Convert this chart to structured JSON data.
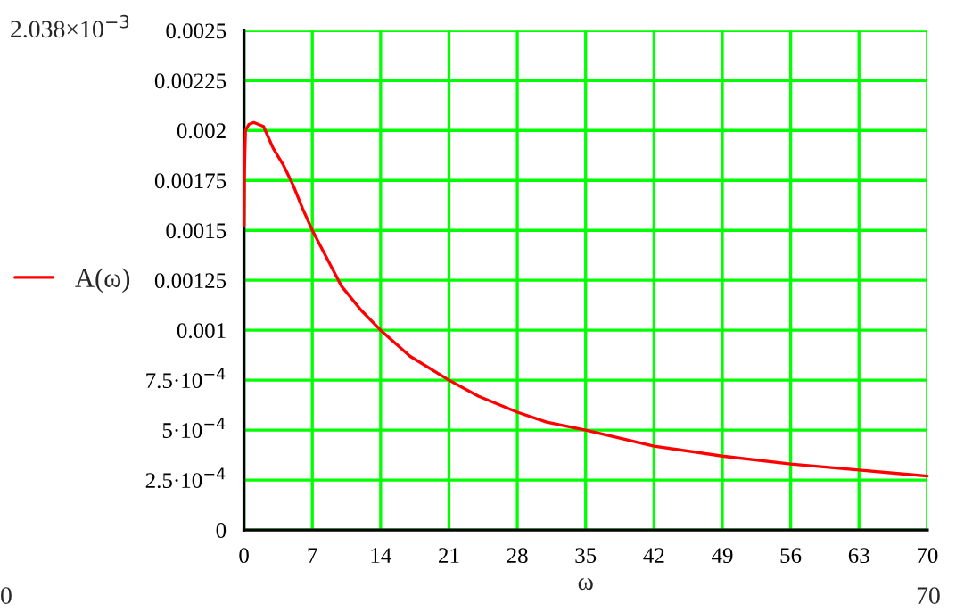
{
  "chart_data": {
    "type": "line",
    "xlabel": "ω",
    "x": [
      0,
      0.05,
      0.15,
      0.5,
      1,
      2,
      3,
      4,
      5,
      6,
      7,
      10,
      12,
      14,
      17,
      21,
      24,
      28,
      31,
      35,
      42,
      49,
      56,
      63,
      70
    ],
    "series": [
      {
        "name": "A(ω)",
        "color": "#ff0000",
        "values": [
          0.00152,
          0.0018,
          0.002,
          0.00203,
          0.00204,
          0.00202,
          0.00191,
          0.00183,
          0.00173,
          0.00161,
          0.0015,
          0.00122,
          0.0011,
          0.001,
          0.00087,
          0.00075,
          0.00067,
          0.00059,
          0.00054,
          0.0005,
          0.00042,
          0.00037,
          0.00033,
          0.0003,
          0.00027
        ]
      }
    ],
    "xlim": [
      0,
      70
    ],
    "ylim": [
      0,
      0.0025
    ],
    "xticks": [
      0,
      7,
      14,
      21,
      28,
      35,
      42,
      49,
      56,
      63,
      70
    ],
    "yticks": [
      0,
      {
        "value": 0.00025,
        "label": "2.5·10$^{−4}$"
      },
      {
        "value": 0.0005,
        "label": "5·10$^{−4}$"
      },
      {
        "value": 0.00075,
        "label": "7.5·10$^{−4}$"
      },
      {
        "value": 0.001,
        "label": "0.001"
      },
      {
        "value": 0.00125,
        "label": "0.00125"
      },
      {
        "value": 0.0015,
        "label": "0.0015"
      },
      {
        "value": 0.00175,
        "label": "0.00175"
      },
      {
        "value": 0.002,
        "label": "0.002"
      },
      {
        "value": 0.00225,
        "label": "0.00225"
      },
      {
        "value": 0.0025,
        "label": "0.0025"
      }
    ],
    "grid": true,
    "legend": "left",
    "annotations": [
      "2.038×10$^{−3}$",
      "0",
      "70"
    ]
  }
}
